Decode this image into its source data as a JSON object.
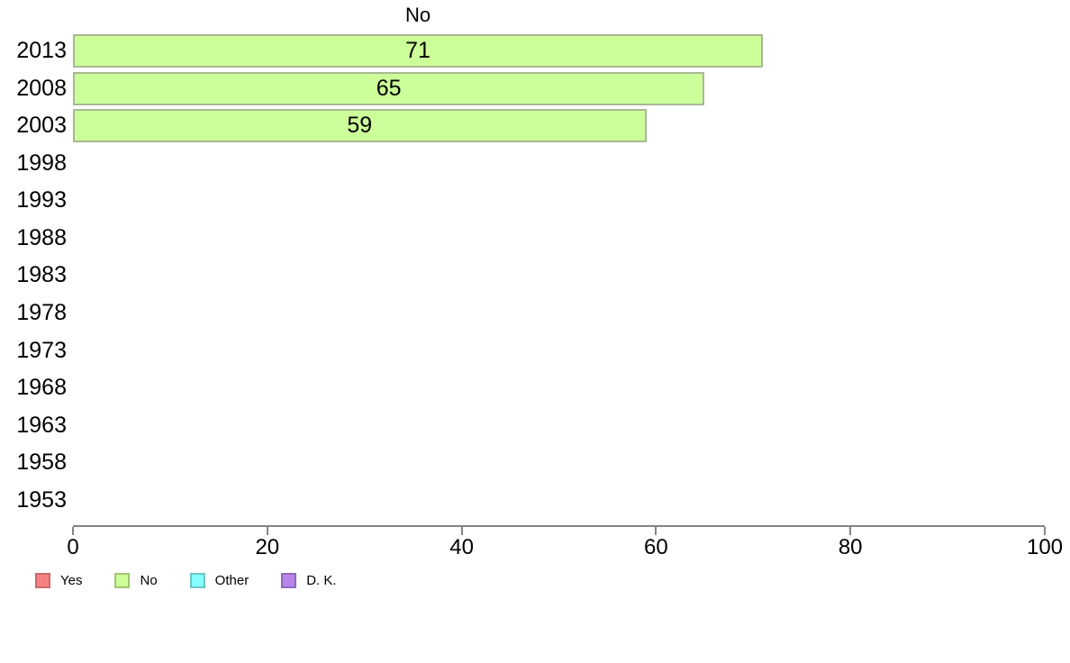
{
  "chart_data": {
    "type": "bar",
    "orientation": "horizontal",
    "title": "No",
    "categories": [
      "2013",
      "2008",
      "2003",
      "1998",
      "1993",
      "1988",
      "1983",
      "1978",
      "1973",
      "1968",
      "1963",
      "1958",
      "1953"
    ],
    "values": [
      71,
      65,
      59,
      null,
      null,
      null,
      null,
      null,
      null,
      null,
      null,
      null,
      null
    ],
    "xlim": [
      0,
      100
    ],
    "x_ticks": [
      0,
      20,
      40,
      60,
      80,
      100
    ],
    "grid": false,
    "value_labels_shown": true,
    "bar_fill_color": "#ccff99",
    "bar_border_color": "#a9b894",
    "axis_color": "#858585",
    "legend": {
      "position": "bottom-left",
      "entries": [
        {
          "label": "Yes",
          "fill": "#f58282",
          "border": "#c96a6a"
        },
        {
          "label": "No",
          "fill": "#ccff99",
          "border": "#a4c472"
        },
        {
          "label": "Other",
          "fill": "#85ffff",
          "border": "#6cc4c9"
        },
        {
          "label": "D. K.",
          "fill": "#b885ea",
          "border": "#9468bd"
        }
      ]
    }
  }
}
